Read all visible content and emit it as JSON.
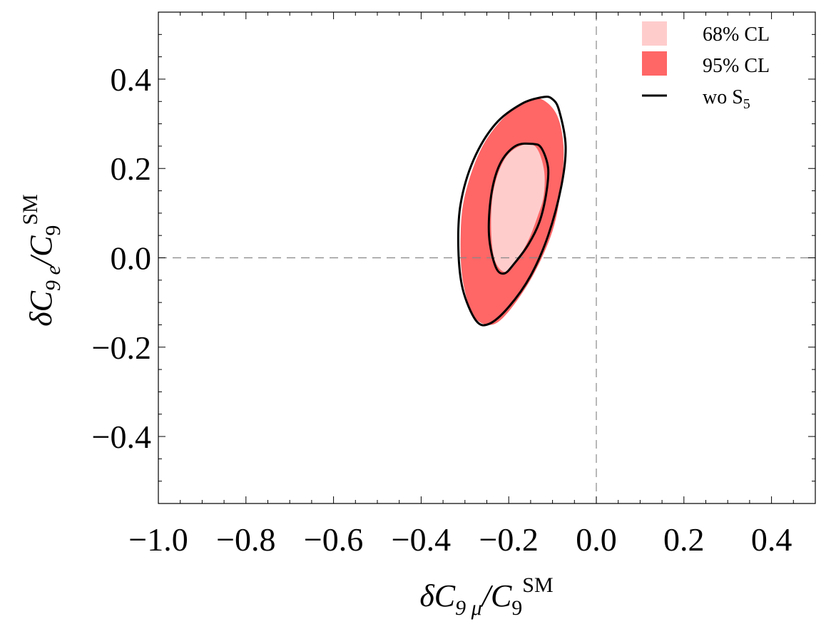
{
  "chart_data": {
    "type": "contour",
    "xlabel": {
      "prefix": "δC",
      "sub": "9 μ",
      "sep": "/C",
      "sub2": "9",
      "sup": "SM"
    },
    "ylabel": {
      "prefix": "δC",
      "sub": "9 e",
      "sep": "/C",
      "sub2": "9",
      "sup": "SM"
    },
    "xlim": [
      -1.0,
      0.5
    ],
    "ylim": [
      -0.55,
      0.55
    ],
    "xticks": [
      -1.0,
      -0.8,
      -0.6,
      -0.4,
      -0.2,
      0.0,
      0.2,
      0.4
    ],
    "xtick_labels": [
      "−1.0",
      "−0.8",
      "−0.6",
      "−0.4",
      "−0.2",
      "0.0",
      "0.2",
      "0.4"
    ],
    "yticks": [
      -0.4,
      -0.2,
      0.0,
      0.2,
      0.4
    ],
    "ytick_labels": [
      "−0.4",
      "−0.2",
      "0.0",
      "0.2",
      "0.4"
    ],
    "reference_lines": {
      "x": 0.0,
      "y": 0.0,
      "style": "dashed"
    },
    "legend": {
      "position": "top-right",
      "entries": [
        {
          "label": "68% CL",
          "kind": "fill",
          "color": "#FFCCCC"
        },
        {
          "label": "95% CL",
          "kind": "fill",
          "color": "#FF6666"
        },
        {
          "label": "wo S",
          "sub": "5",
          "kind": "line",
          "color": "#000000"
        }
      ]
    },
    "regions": [
      {
        "name": "95% CL",
        "color": "#FF6666",
        "points": [
          [
            -0.125,
            0.355
          ],
          [
            -0.09,
            0.32
          ],
          [
            -0.075,
            0.25
          ],
          [
            -0.08,
            0.16
          ],
          [
            -0.1,
            0.06
          ],
          [
            -0.145,
            -0.04
          ],
          [
            -0.2,
            -0.12
          ],
          [
            -0.24,
            -0.15
          ],
          [
            -0.28,
            -0.13
          ],
          [
            -0.305,
            -0.05
          ],
          [
            -0.31,
            0.05
          ],
          [
            -0.3,
            0.14
          ],
          [
            -0.265,
            0.24
          ],
          [
            -0.215,
            0.31
          ],
          [
            -0.16,
            0.35
          ]
        ]
      },
      {
        "name": "68% CL",
        "color": "#FFCCCC",
        "points": [
          [
            -0.14,
            0.25
          ],
          [
            -0.12,
            0.2
          ],
          [
            -0.12,
            0.14
          ],
          [
            -0.135,
            0.09
          ],
          [
            -0.16,
            0.03
          ],
          [
            -0.2,
            -0.03
          ],
          [
            -0.23,
            -0.01
          ],
          [
            -0.24,
            0.06
          ],
          [
            -0.235,
            0.15
          ],
          [
            -0.21,
            0.22
          ],
          [
            -0.175,
            0.25
          ]
        ]
      }
    ],
    "contours": [
      {
        "name": "wo S5 95%",
        "color": "#000000",
        "points": [
          [
            -0.12,
            0.36
          ],
          [
            -0.1,
            0.355
          ],
          [
            -0.085,
            0.33
          ],
          [
            -0.07,
            0.25
          ],
          [
            -0.08,
            0.16
          ],
          [
            -0.11,
            0.05
          ],
          [
            -0.15,
            -0.04
          ],
          [
            -0.2,
            -0.11
          ],
          [
            -0.245,
            -0.148
          ],
          [
            -0.275,
            -0.14
          ],
          [
            -0.305,
            -0.07
          ],
          [
            -0.315,
            0.02
          ],
          [
            -0.31,
            0.12
          ],
          [
            -0.28,
            0.22
          ],
          [
            -0.23,
            0.3
          ],
          [
            -0.17,
            0.345
          ]
        ]
      },
      {
        "name": "wo S5 68%",
        "color": "#000000",
        "points": [
          [
            -0.145,
            0.255
          ],
          [
            -0.125,
            0.245
          ],
          [
            -0.11,
            0.2
          ],
          [
            -0.115,
            0.14
          ],
          [
            -0.13,
            0.08
          ],
          [
            -0.155,
            0.03
          ],
          [
            -0.185,
            -0.01
          ],
          [
            -0.21,
            -0.035
          ],
          [
            -0.23,
            -0.02
          ],
          [
            -0.245,
            0.05
          ],
          [
            -0.24,
            0.14
          ],
          [
            -0.22,
            0.21
          ],
          [
            -0.185,
            0.25
          ]
        ]
      }
    ]
  }
}
